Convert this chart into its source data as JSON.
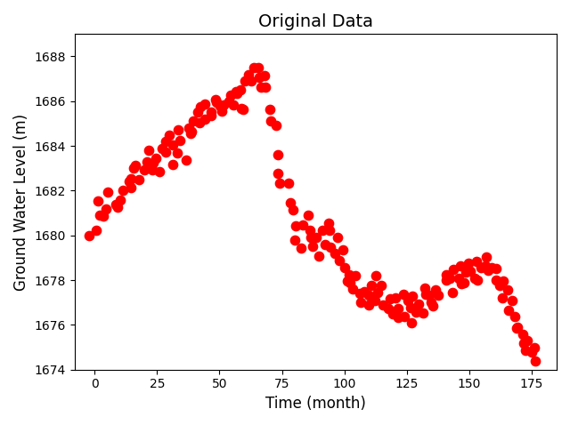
{
  "title": "Original Data",
  "xlabel": "Time (month)",
  "ylabel": "Ground Water Level (m)",
  "xlim": [
    -8,
    185
  ],
  "ylim": [
    1674,
    1689
  ],
  "xticks": [
    0,
    25,
    50,
    75,
    100,
    125,
    150,
    175
  ],
  "yticks": [
    1674,
    1676,
    1678,
    1680,
    1682,
    1684,
    1686,
    1688
  ],
  "dot_color": "red",
  "dot_size": 55,
  "figsize": [
    6.4,
    4.78
  ],
  "dpi": 100,
  "x": [
    -2,
    0,
    1,
    2,
    4,
    5,
    6,
    8,
    9,
    10,
    12,
    13,
    14,
    15,
    16,
    17,
    18,
    20,
    21,
    22,
    23,
    24,
    25,
    26,
    27,
    28,
    29,
    30,
    31,
    32,
    33,
    34,
    35,
    36,
    37,
    38,
    39,
    40,
    41,
    42,
    43,
    44,
    45,
    46,
    47,
    48,
    49,
    50,
    51,
    52,
    53,
    54,
    55,
    56,
    57,
    58,
    59,
    60,
    61,
    62,
    63,
    64,
    65,
    66,
    67,
    68,
    69,
    70,
    71,
    72,
    73,
    74,
    75,
    77,
    78,
    79,
    80,
    81,
    83,
    84,
    85,
    86,
    87,
    88,
    89,
    90,
    91,
    92,
    93,
    94,
    95,
    96,
    97,
    98,
    99,
    100,
    101,
    102,
    103,
    104,
    105,
    106,
    107,
    108,
    109,
    110,
    111,
    112,
    113,
    114,
    115,
    116,
    117,
    118,
    119,
    120,
    121,
    122,
    123,
    124,
    125,
    126,
    127,
    128,
    129,
    130,
    131,
    132,
    133,
    134,
    135,
    136,
    137,
    138,
    140,
    141,
    142,
    143,
    144,
    145,
    146,
    147,
    148,
    149,
    150,
    151,
    152,
    153,
    154,
    155,
    156,
    157,
    158,
    159,
    160,
    161,
    162,
    163,
    164,
    165,
    166,
    167,
    168,
    169,
    170,
    171,
    172,
    173,
    174,
    175,
    176,
    177
  ],
  "y": [
    1680.0,
    1680.3,
    1681.5,
    1681.0,
    1680.8,
    1681.2,
    1681.8,
    1681.5,
    1681.3,
    1681.7,
    1681.9,
    1682.3,
    1682.6,
    1682.1,
    1682.9,
    1683.1,
    1682.5,
    1683.0,
    1683.4,
    1683.7,
    1682.8,
    1683.2,
    1683.5,
    1682.9,
    1683.8,
    1684.1,
    1683.6,
    1684.4,
    1684.0,
    1683.3,
    1683.8,
    1684.6,
    1684.2,
    1683.5,
    1684.9,
    1684.5,
    1684.8,
    1685.2,
    1685.5,
    1685.0,
    1685.7,
    1685.3,
    1685.8,
    1685.6,
    1685.4,
    1686.0,
    1685.9,
    1685.7,
    1685.5,
    1685.8,
    1686.1,
    1686.3,
    1685.9,
    1686.5,
    1686.2,
    1685.7,
    1686.4,
    1685.6,
    1686.8,
    1687.2,
    1686.9,
    1687.5,
    1687.6,
    1687.0,
    1686.7,
    1687.3,
    1686.6,
    1685.2,
    1685.5,
    1684.8,
    1683.5,
    1682.8,
    1682.5,
    1682.2,
    1681.5,
    1681.0,
    1680.3,
    1679.7,
    1679.5,
    1680.5,
    1680.8,
    1680.3,
    1680.0,
    1679.5,
    1679.8,
    1679.0,
    1680.2,
    1679.7,
    1680.5,
    1680.1,
    1679.6,
    1679.2,
    1679.8,
    1678.8,
    1679.3,
    1678.5,
    1678.0,
    1678.3,
    1677.8,
    1677.5,
    1678.1,
    1677.3,
    1677.0,
    1677.5,
    1676.8,
    1677.3,
    1677.7,
    1677.0,
    1678.1,
    1677.5,
    1677.8,
    1677.0,
    1676.7,
    1677.3,
    1676.5,
    1677.2,
    1676.8,
    1676.3,
    1677.5,
    1676.5,
    1677.0,
    1676.8,
    1676.2,
    1677.3,
    1676.5,
    1677.0,
    1676.5,
    1677.5,
    1677.8,
    1677.3,
    1677.0,
    1676.8,
    1677.5,
    1677.2,
    1678.0,
    1678.3,
    1678.0,
    1677.5,
    1678.5,
    1678.2,
    1678.0,
    1678.5,
    1677.8,
    1678.3,
    1678.8,
    1678.5,
    1678.2,
    1678.9,
    1678.0,
    1678.5,
    1679.0,
    1678.7,
    1678.3,
    1678.5,
    1678.0,
    1678.5,
    1677.8,
    1677.3,
    1678.0,
    1677.5,
    1676.8,
    1677.2,
    1676.5,
    1676.0,
    1675.8,
    1675.5,
    1675.2,
    1675.0,
    1675.3,
    1674.8,
    1674.5,
    1675.0
  ]
}
